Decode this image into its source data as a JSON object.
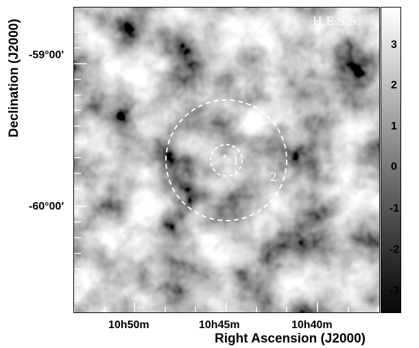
{
  "image": {
    "brand_text": "H.E.S.S.",
    "x_axis_title": "Right Ascension (J2000)",
    "y_axis_title": "Declination (J2000)",
    "dec_ticks": [
      {
        "label": "-59°00'"
      },
      {
        "label": "-60°00'"
      }
    ],
    "ra_ticks": [
      {
        "label": "10h50m"
      },
      {
        "label": "10h45m"
      },
      {
        "label": "10h40m"
      }
    ],
    "colorbar": {
      "ticks": [
        "3",
        "2",
        "1",
        "0",
        "-1",
        "-2",
        "-3"
      ],
      "min": -3.5,
      "max": 3.9
    },
    "regions": [
      {
        "label": "1"
      },
      {
        "label": "2"
      }
    ],
    "center_marker": "*",
    "colors": {
      "map_dark": "#1a1a1a",
      "map_light": "#ffffff",
      "overlay": "#ffffff"
    }
  }
}
